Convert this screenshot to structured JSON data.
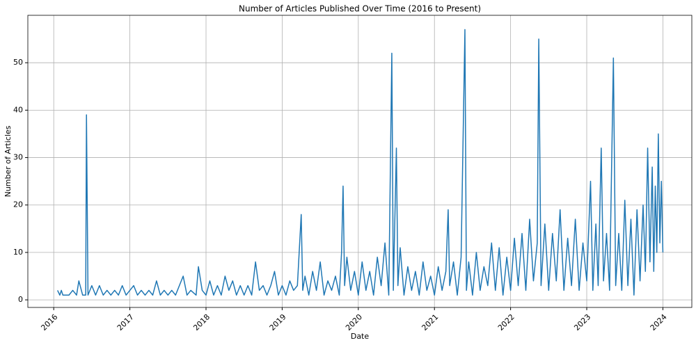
{
  "chart_data": {
    "type": "line",
    "title": "Number of Articles Published Over Time (2016 to Present)",
    "x_label": "Date",
    "y_label": "Number of Articles",
    "x": [
      2016.05,
      2016.08,
      2016.1,
      2016.12,
      2016.2,
      2016.25,
      2016.3,
      2016.33,
      2016.38,
      2016.42,
      2016.43,
      2016.45,
      2016.5,
      2016.55,
      2016.6,
      2016.65,
      2016.7,
      2016.75,
      2016.8,
      2016.85,
      2016.9,
      2016.95,
      2017.0,
      2017.05,
      2017.1,
      2017.15,
      2017.2,
      2017.25,
      2017.3,
      2017.35,
      2017.4,
      2017.45,
      2017.5,
      2017.55,
      2017.6,
      2017.65,
      2017.7,
      2017.75,
      2017.8,
      2017.87,
      2017.9,
      2017.95,
      2018.0,
      2018.05,
      2018.1,
      2018.15,
      2018.2,
      2018.25,
      2018.3,
      2018.35,
      2018.4,
      2018.45,
      2018.5,
      2018.55,
      2018.6,
      2018.65,
      2018.7,
      2018.75,
      2018.8,
      2018.85,
      2018.9,
      2018.95,
      2019.0,
      2019.05,
      2019.1,
      2019.15,
      2019.2,
      2019.25,
      2019.27,
      2019.3,
      2019.35,
      2019.4,
      2019.45,
      2019.5,
      2019.55,
      2019.6,
      2019.65,
      2019.7,
      2019.75,
      2019.78,
      2019.8,
      2019.82,
      2019.85,
      2019.9,
      2019.95,
      2020.0,
      2020.05,
      2020.1,
      2020.15,
      2020.2,
      2020.25,
      2020.3,
      2020.35,
      2020.4,
      2020.44,
      2020.46,
      2020.5,
      2020.52,
      2020.55,
      2020.6,
      2020.65,
      2020.7,
      2020.75,
      2020.8,
      2020.85,
      2020.9,
      2020.95,
      2021.0,
      2021.05,
      2021.1,
      2021.15,
      2021.18,
      2021.2,
      2021.25,
      2021.3,
      2021.35,
      2021.4,
      2021.42,
      2021.45,
      2021.5,
      2021.55,
      2021.6,
      2021.65,
      2021.7,
      2021.75,
      2021.8,
      2021.85,
      2021.9,
      2021.95,
      2022.0,
      2022.05,
      2022.1,
      2022.15,
      2022.2,
      2022.25,
      2022.3,
      2022.35,
      2022.37,
      2022.4,
      2022.45,
      2022.5,
      2022.55,
      2022.6,
      2022.65,
      2022.7,
      2022.75,
      2022.8,
      2022.85,
      2022.9,
      2022.95,
      2023.0,
      2023.05,
      2023.08,
      2023.12,
      2023.15,
      2023.19,
      2023.22,
      2023.26,
      2023.3,
      2023.35,
      2023.38,
      2023.42,
      2023.46,
      2023.5,
      2023.54,
      2023.58,
      2023.62,
      2023.66,
      2023.7,
      2023.74,
      2023.77,
      2023.8,
      2023.83,
      2023.86,
      2023.88,
      2023.9,
      2023.92,
      2023.94,
      2023.96,
      2023.98,
      2024.0
    ],
    "series": [
      {
        "name": "Articles",
        "color": "#1f77b4",
        "values": [
          2,
          1,
          2,
          1,
          1,
          2,
          1,
          4,
          1,
          1,
          39,
          1,
          3,
          1,
          3,
          1,
          2,
          1,
          2,
          1,
          3,
          1,
          2,
          3,
          1,
          2,
          1,
          2,
          1,
          4,
          1,
          2,
          1,
          2,
          1,
          3,
          5,
          1,
          2,
          1,
          7,
          2,
          1,
          4,
          1,
          3,
          1,
          5,
          2,
          4,
          1,
          3,
          1,
          3,
          1,
          8,
          2,
          3,
          1,
          3,
          6,
          1,
          3,
          1,
          4,
          2,
          3,
          18,
          2,
          5,
          1,
          6,
          2,
          8,
          1,
          4,
          2,
          5,
          1,
          10,
          24,
          3,
          9,
          2,
          6,
          1,
          8,
          2,
          6,
          1,
          9,
          3,
          12,
          1,
          52,
          2,
          32,
          3,
          11,
          1,
          7,
          2,
          6,
          1,
          8,
          2,
          5,
          1,
          7,
          2,
          6,
          19,
          3,
          8,
          1,
          9,
          57,
          2,
          8,
          1,
          10,
          2,
          7,
          3,
          12,
          2,
          11,
          1,
          9,
          2,
          13,
          3,
          14,
          2,
          17,
          4,
          12,
          55,
          3,
          16,
          2,
          14,
          4,
          19,
          2,
          13,
          3,
          17,
          2,
          12,
          4,
          25,
          2,
          16,
          3,
          32,
          4,
          14,
          2,
          51,
          3,
          14,
          2,
          21,
          3,
          17,
          1,
          19,
          4,
          20,
          6,
          32,
          8,
          28,
          6,
          24,
          10,
          35,
          12,
          25,
          10
        ]
      }
    ],
    "xlim": [
      2015.66,
      2024.38
    ],
    "ylim": [
      -1.6,
      60
    ],
    "xticks": [
      2016,
      2017,
      2018,
      2019,
      2020,
      2021,
      2022,
      2023,
      2024
    ],
    "yticks": [
      0,
      10,
      20,
      30,
      40,
      50
    ],
    "grid": true
  }
}
